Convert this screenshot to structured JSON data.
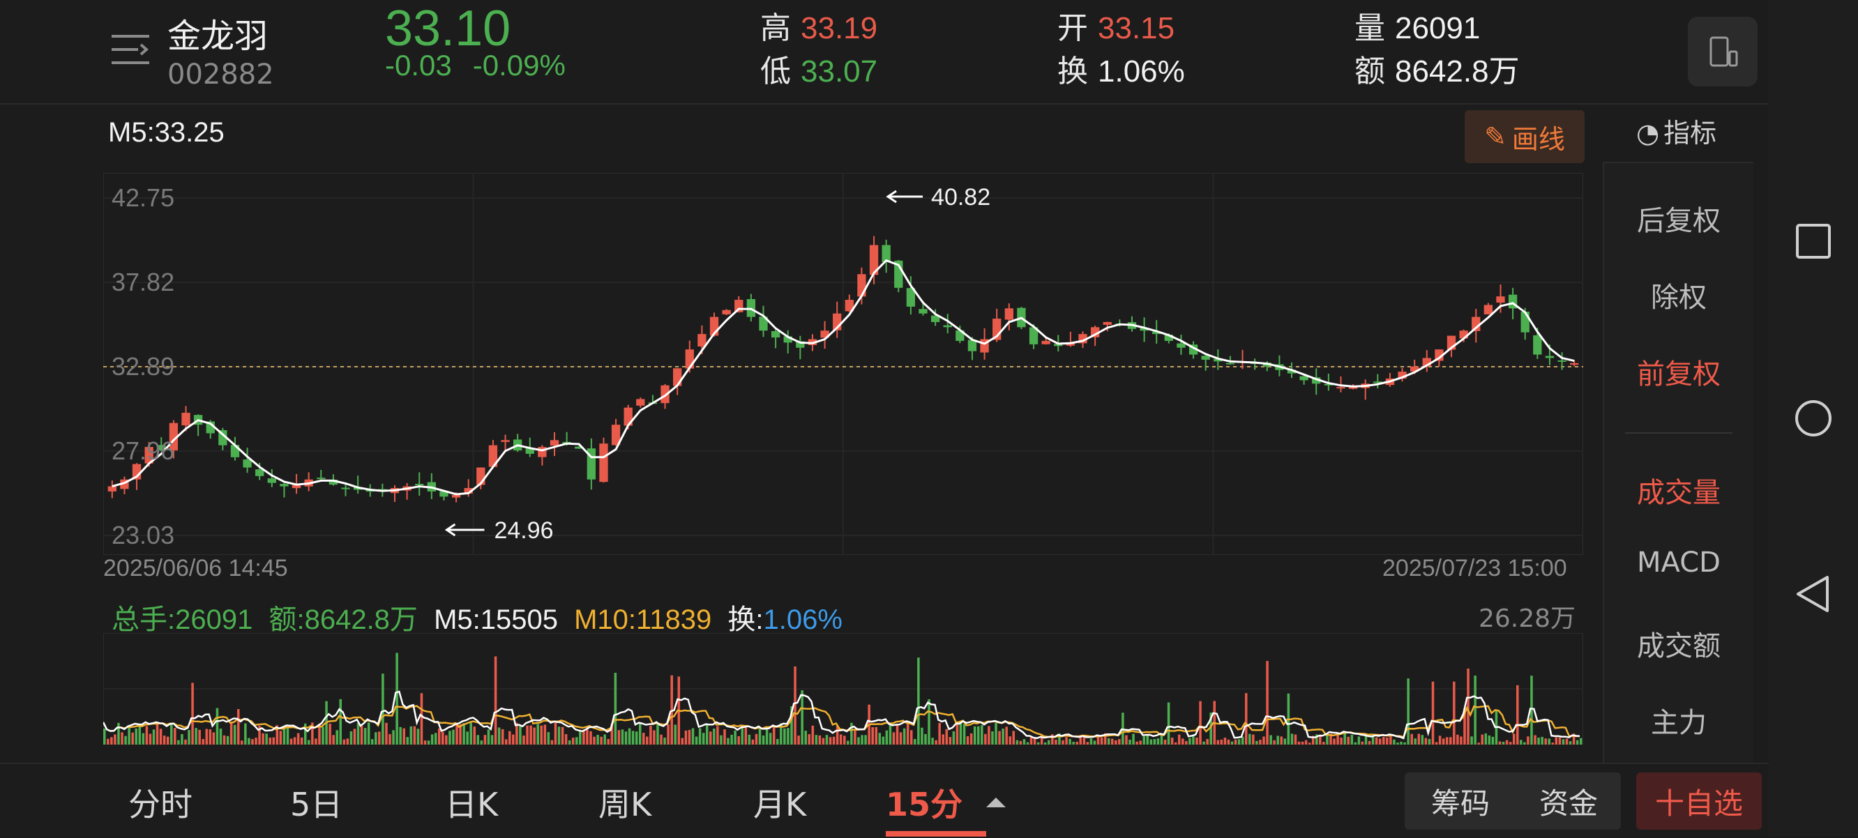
{
  "header": {
    "name": "金龙羽",
    "code": "002882",
    "price": "33.10",
    "change": "-0.03",
    "change_pct": "-0.09%",
    "high_label": "高",
    "high": "33.19",
    "low_label": "低",
    "low": "33.07",
    "open_label": "开",
    "open": "33.15",
    "turnover_label": "换",
    "turnover": "1.06%",
    "volume_label": "量",
    "volume": "26091",
    "amount_label": "额",
    "amount": "8642.8万"
  },
  "chart": {
    "ma_label": "M5:33.25",
    "draw_button": "画线",
    "indicator_button": "指标",
    "y_ticks": [
      "42.75",
      "37.82",
      "32.89",
      "27.96",
      "23.03"
    ],
    "high_marker": "40.82",
    "low_marker": "24.96",
    "date_start": "2025/06/06 14:45",
    "date_end": "2025/07/23 15:00"
  },
  "side_panel": {
    "items": [
      {
        "label": "后复权",
        "active": false
      },
      {
        "label": "除权",
        "active": false
      },
      {
        "label": "前复权",
        "active": true
      },
      {
        "label": "成交量",
        "active": true
      },
      {
        "label": "MACD",
        "active": false
      },
      {
        "label": "成交额",
        "active": false
      },
      {
        "label": "主力",
        "active": false
      }
    ]
  },
  "volume_panel": {
    "total_label": "总手:26091",
    "amount_label": "额:8642.8万",
    "m5_label": "M5:15505",
    "m10_label": "M10:11839",
    "turnover_prefix": "换:",
    "turnover_value": "1.06%",
    "max_label": "26.28万"
  },
  "tabs": [
    "分时",
    "5日",
    "日K",
    "周K",
    "月K",
    "15分"
  ],
  "active_tab": "15分",
  "bottom_buttons": {
    "chips": "筹码",
    "funds": "资金",
    "favorite": "十自选"
  },
  "colors": {
    "up": "#e85a4a",
    "down": "#4caf50",
    "ma5": "#ffffff",
    "ma10": "#f0b030",
    "accent": "#ef5a4a"
  },
  "chart_data": {
    "type": "line",
    "x_start": "2025/06/06 14:45",
    "x_end": "2025/07/23 15:00",
    "ylim": [
      23.03,
      42.75
    ],
    "close": [
      25.9,
      26.3,
      27.2,
      28.2,
      28.0,
      29.6,
      30.2,
      29.5,
      29.0,
      28.3,
      27.6,
      27.0,
      26.5,
      26.1,
      25.9,
      26.0,
      26.3,
      26.4,
      26.0,
      25.8,
      25.7,
      25.6,
      25.6,
      25.8,
      25.9,
      26.0,
      25.6,
      25.3,
      25.4,
      25.8,
      27.0,
      28.3,
      28.6,
      28.0,
      27.8,
      28.2,
      28.6,
      28.4,
      28.1,
      26.3,
      28.4,
      29.5,
      30.5,
      31.0,
      30.8,
      31.8,
      32.8,
      33.9,
      34.8,
      35.8,
      36.2,
      36.8,
      35.8,
      35.0,
      34.6,
      34.3,
      34.0,
      34.5,
      35.0,
      36.0,
      36.8,
      38.3,
      40.0,
      39.0,
      37.5,
      36.4,
      36.0,
      35.5,
      35.2,
      34.4,
      33.8,
      34.5,
      35.7,
      36.3,
      35.2,
      34.2,
      34.4,
      34.1,
      34.3,
      34.8,
      35.2,
      35.5,
      35.4,
      35.1,
      35.0,
      34.8,
      34.4,
      34.0,
      33.6,
      33.3,
      33.2,
      33.1,
      33.2,
      33.1,
      32.9,
      32.7,
      32.5,
      32.1,
      31.9,
      31.8,
      31.7,
      31.7,
      31.9,
      32.0,
      32.2,
      32.6,
      32.9,
      33.4,
      33.9,
      34.7,
      35.0,
      35.8,
      36.5,
      37.0,
      36.3,
      34.9,
      33.6,
      33.4,
      33.2,
      33.1
    ],
    "high_marker": 40.82,
    "low_marker": 24.96,
    "reference_line": 32.89,
    "volume_max_label": "26.28万"
  }
}
